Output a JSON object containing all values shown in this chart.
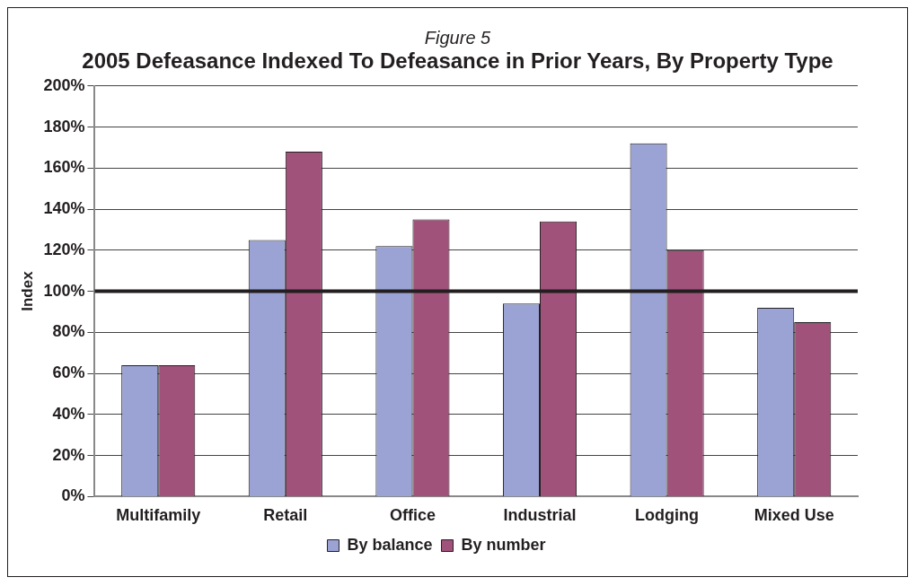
{
  "chart_data": {
    "type": "bar",
    "title": "2005 Defeasance Indexed To Defeasance in Prior Years, By Property Type",
    "subtitle": "Figure 5",
    "ylabel": "Index",
    "categories": [
      "Multifamily",
      "Retail",
      "Office",
      "Industrial",
      "Lodging",
      "Mixed Use"
    ],
    "series": [
      {
        "name": "By balance",
        "color": "#9aa3d4",
        "values": [
          64,
          125,
          122,
          94,
          172,
          92
        ]
      },
      {
        "name": "By number",
        "color": "#a0527a",
        "values": [
          64,
          168,
          135,
          134,
          120,
          85
        ]
      }
    ],
    "ylim": [
      0,
      200
    ],
    "yticks": [
      {
        "value": 0,
        "label": "0%"
      },
      {
        "value": 20,
        "label": "20%"
      },
      {
        "value": 40,
        "label": "40%"
      },
      {
        "value": 60,
        "label": "60%"
      },
      {
        "value": 80,
        "label": "80%"
      },
      {
        "value": 100,
        "label": "100%"
      },
      {
        "value": 120,
        "label": "120%"
      },
      {
        "value": 140,
        "label": "140%"
      },
      {
        "value": 160,
        "label": "160%"
      },
      {
        "value": 180,
        "label": "180%"
      },
      {
        "value": 200,
        "label": "200%"
      }
    ],
    "ref_lines": [
      {
        "axis": "y",
        "value": 100,
        "color": "#231f20"
      }
    ],
    "grid": "y",
    "legend": "bottom"
  }
}
